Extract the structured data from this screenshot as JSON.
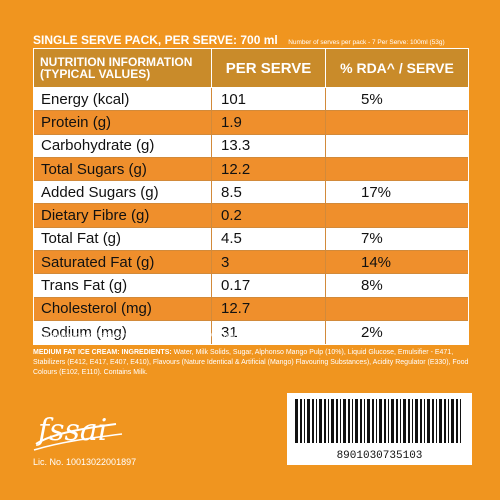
{
  "header": {
    "main": "SINGLE SERVE PACK, PER SERVE: 700 ml",
    "sub": "Number of serves per pack - 7 Per Serve: 100ml (53g)"
  },
  "table": {
    "col_name": "NUTRITION INFORMATION (TYPICAL VALUES)",
    "col_serve": "PER SERVE",
    "col_rda": "% RDA^ / SERVE",
    "rows": [
      {
        "name": "Energy (kcal)",
        "serve": "101",
        "rda": "5%"
      },
      {
        "name": "Protein (g)",
        "serve": "1.9",
        "rda": ""
      },
      {
        "name": "Carbohydrate (g)",
        "serve": "13.3",
        "rda": ""
      },
      {
        "name": "Total Sugars (g)",
        "serve": "12.2",
        "rda": ""
      },
      {
        "name": "Added Sugars (g)",
        "serve": "8.5",
        "rda": "17%"
      },
      {
        "name": "Dietary Fibre (g)",
        "serve": "0.2",
        "rda": ""
      },
      {
        "name": "Total Fat (g)",
        "serve": "4.5",
        "rda": "7%"
      },
      {
        "name": "Saturated Fat (g)",
        "serve": "3",
        "rda": "14%"
      },
      {
        "name": "Trans Fat (g)",
        "serve": "0.17",
        "rda": "8%"
      },
      {
        "name": "Cholesterol (mg)",
        "serve": "12.7",
        "rda": ""
      },
      {
        "name": "Sodium (mg)",
        "serve": "31",
        "rda": "2%"
      }
    ]
  },
  "footnote": "^% of an average Adult's Recommended Dietary Allowance (2000 kcal diet).",
  "ingredients": {
    "label": "MEDIUM FAT ICE CREAM: INGREDIENTS:",
    "text": "Water, Milk Solids, Sugar, Alphonso Mango Pulp (10%), Liquid Glucose, Emulsifier - E471, Stabilizers (E412, E417, E407, E410), Flavours (Nature Identical & Artificial (Mango) Flavouring Substances), Acidity Regulator (E330), Food Colours (E102, E110). Contains Milk."
  },
  "logo_text": "fssai",
  "license": "Lic. No. 10013022001897",
  "barcode_number": "8901030735103",
  "colors": {
    "background": "#f0951f",
    "header_row": "#c98b2a",
    "row_orange": "#ef8f2c",
    "row_white": "#ffffff"
  }
}
